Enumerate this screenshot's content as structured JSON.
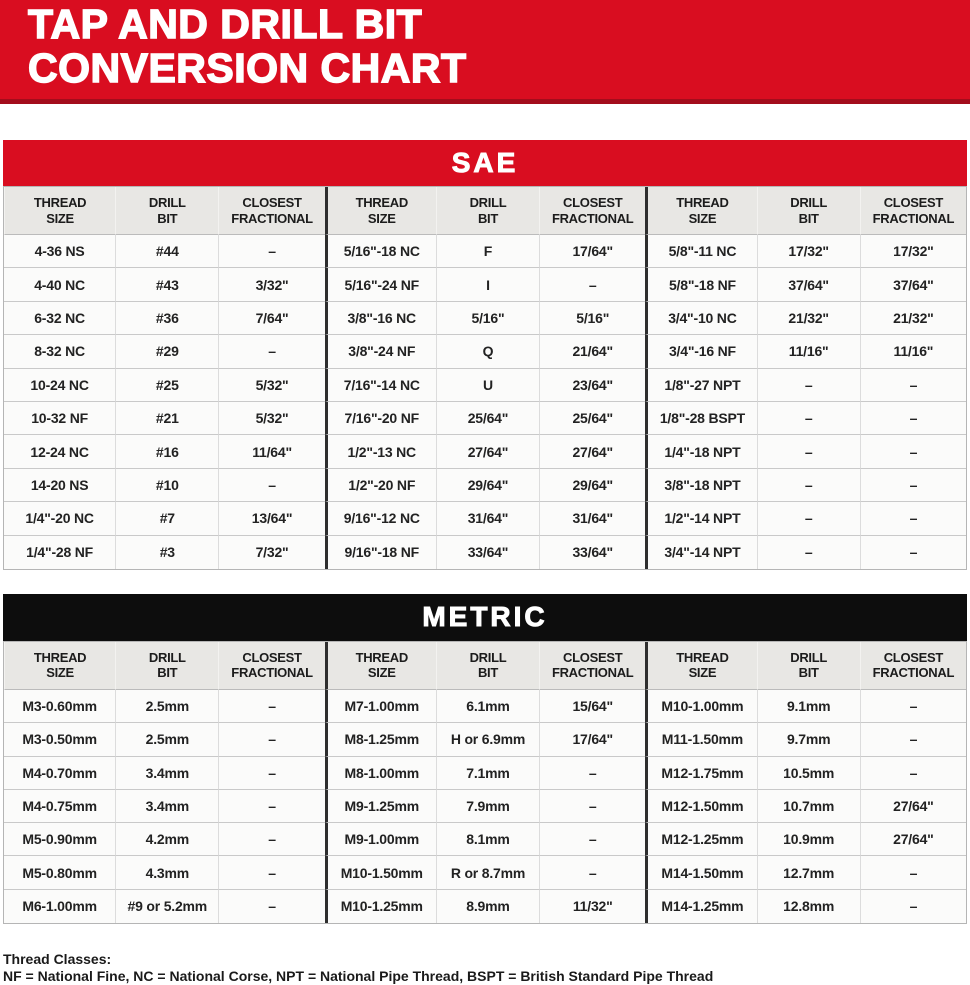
{
  "page": {
    "title_line1": "TAP AND DRILL BIT",
    "title_line2": "CONVERSION CHART"
  },
  "colors": {
    "brand_red": "#D90D20",
    "dark_red_strip": "#A30D1C",
    "banner_black": "#0D0D0D",
    "header_gray": "#E8E7E4"
  },
  "tables": [
    {
      "id": "sae",
      "banner": "SAE",
      "column_headers": [
        "THREAD\nSIZE",
        "DRILL\nBIT",
        "CLOSEST\nFRACTIONAL"
      ],
      "rows": [
        [
          "4-36 NS",
          "#44",
          "–",
          "5/16\"-18 NC",
          "F",
          "17/64\"",
          "5/8\"-11 NC",
          "17/32\"",
          "17/32\""
        ],
        [
          "4-40 NC",
          "#43",
          "3/32\"",
          "5/16\"-24 NF",
          "I",
          "–",
          "5/8\"-18 NF",
          "37/64\"",
          "37/64\""
        ],
        [
          "6-32 NC",
          "#36",
          "7/64\"",
          "3/8\"-16 NC",
          "5/16\"",
          "5/16\"",
          "3/4\"-10 NC",
          "21/32\"",
          "21/32\""
        ],
        [
          "8-32 NC",
          "#29",
          "–",
          "3/8\"-24 NF",
          "Q",
          "21/64\"",
          "3/4\"-16 NF",
          "11/16\"",
          "11/16\""
        ],
        [
          "10-24 NC",
          "#25",
          "5/32\"",
          "7/16\"-14 NC",
          "U",
          "23/64\"",
          "1/8\"-27 NPT",
          "–",
          "–"
        ],
        [
          "10-32 NF",
          "#21",
          "5/32\"",
          "7/16\"-20 NF",
          "25/64\"",
          "25/64\"",
          "1/8\"-28 BSPT",
          "–",
          "–"
        ],
        [
          "12-24 NC",
          "#16",
          "11/64\"",
          "1/2\"-13 NC",
          "27/64\"",
          "27/64\"",
          "1/4\"-18 NPT",
          "–",
          "–"
        ],
        [
          "14-20 NS",
          "#10",
          "–",
          "1/2\"-20 NF",
          "29/64\"",
          "29/64\"",
          "3/8\"-18 NPT",
          "–",
          "–"
        ],
        [
          "1/4\"-20 NC",
          "#7",
          "13/64\"",
          "9/16\"-12 NC",
          "31/64\"",
          "31/64\"",
          "1/2\"-14 NPT",
          "–",
          "–"
        ],
        [
          "1/4\"-28 NF",
          "#3",
          "7/32\"",
          "9/16\"-18 NF",
          "33/64\"",
          "33/64\"",
          "3/4\"-14 NPT",
          "–",
          "–"
        ]
      ]
    },
    {
      "id": "metric",
      "banner": "METRIC",
      "column_headers": [
        "THREAD\nSIZE",
        "DRILL\nBIT",
        "CLOSEST\nFRACTIONAL"
      ],
      "rows": [
        [
          "M3-0.60mm",
          "2.5mm",
          "–",
          "M7-1.00mm",
          "6.1mm",
          "15/64\"",
          "M10-1.00mm",
          "9.1mm",
          "–"
        ],
        [
          "M3-0.50mm",
          "2.5mm",
          "–",
          "M8-1.25mm",
          "H or 6.9mm",
          "17/64\"",
          "M11-1.50mm",
          "9.7mm",
          "–"
        ],
        [
          "M4-0.70mm",
          "3.4mm",
          "–",
          "M8-1.00mm",
          "7.1mm",
          "–",
          "M12-1.75mm",
          "10.5mm",
          "–"
        ],
        [
          "M4-0.75mm",
          "3.4mm",
          "–",
          "M9-1.25mm",
          "7.9mm",
          "–",
          "M12-1.50mm",
          "10.7mm",
          "27/64\""
        ],
        [
          "M5-0.90mm",
          "4.2mm",
          "–",
          "M9-1.00mm",
          "8.1mm",
          "–",
          "M12-1.25mm",
          "10.9mm",
          "27/64\""
        ],
        [
          "M5-0.80mm",
          "4.3mm",
          "–",
          "M10-1.50mm",
          "R or 8.7mm",
          "–",
          "M14-1.50mm",
          "12.7mm",
          "–"
        ],
        [
          "M6-1.00mm",
          "#9 or 5.2mm",
          "–",
          "M10-1.25mm",
          "8.9mm",
          "11/32\"",
          "M14-1.25mm",
          "12.8mm",
          "–"
        ]
      ]
    }
  ],
  "footer": {
    "heading": "Thread Classes:",
    "line": "NF = National Fine, NC = National Corse, NPT = National Pipe Thread, BSPT = British Standard Pipe Thread"
  }
}
